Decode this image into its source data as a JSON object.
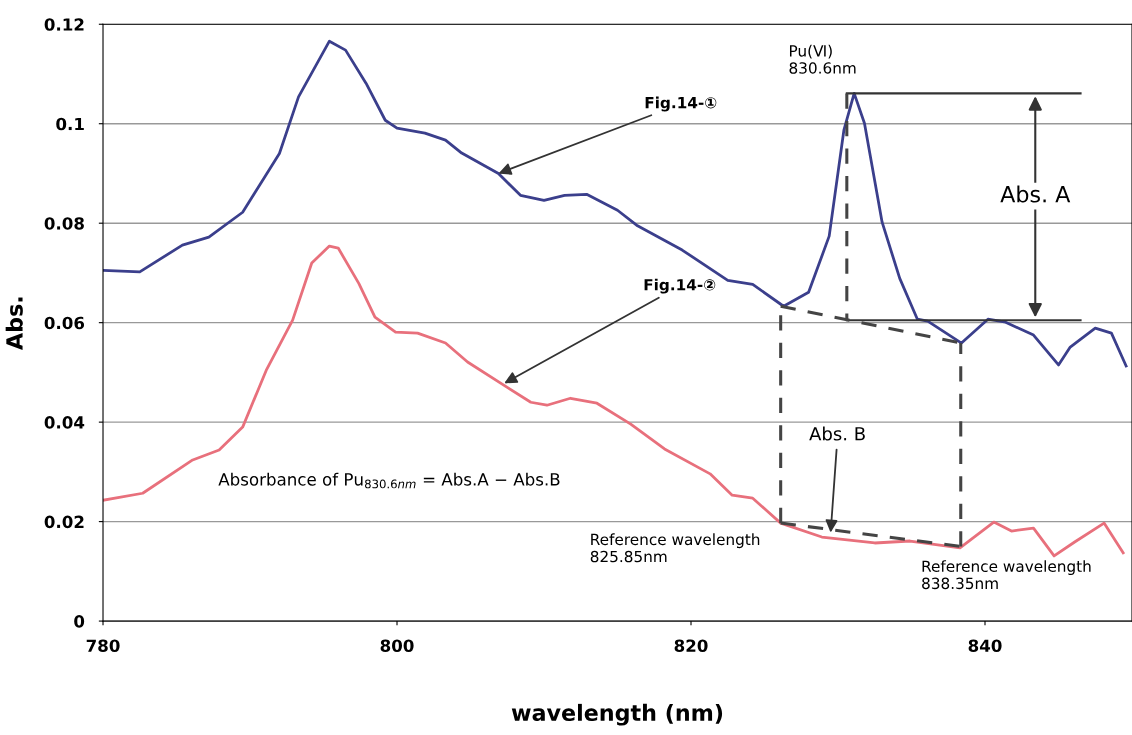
{
  "chart_data": {
    "type": "line",
    "xlabel": "wavelength (nm)",
    "ylabel": "Abs.",
    "xlim": [
      780,
      850
    ],
    "xticks": [
      780,
      800,
      820,
      840
    ],
    "ylim": [
      0,
      0.12
    ],
    "yticks": [
      0,
      0.02,
      0.04,
      0.06,
      0.08,
      0.1,
      0.12
    ],
    "grid": "y",
    "legend": false,
    "marker": "none",
    "series": [
      {
        "color": "#3b3f8c",
        "line_style": "solid",
        "x": [
          780,
          782.5,
          785.4,
          787.2,
          789.5,
          792,
          793.3,
          795.4,
          796.5,
          797.9,
          799.2,
          800,
          801.9,
          803.3,
          804.4,
          806.9,
          808.4,
          810,
          811.4,
          812.9,
          815,
          816.3,
          819.4,
          822.5,
          824.2,
          826.3,
          828,
          829.4,
          830.4,
          831.1,
          831.8,
          833,
          834.2,
          835.4,
          836.1,
          838.4,
          840.2,
          841.4,
          843.3,
          845,
          845.8,
          847.5,
          848.6,
          849.6
        ],
        "values": [
          0.0705,
          0.0702,
          0.0756,
          0.0772,
          0.0822,
          0.094,
          0.1054,
          0.1166,
          0.1148,
          0.1081,
          0.1007,
          0.0991,
          0.0981,
          0.0967,
          0.0941,
          0.09,
          0.0856,
          0.0846,
          0.0856,
          0.0858,
          0.0826,
          0.0796,
          0.0746,
          0.0685,
          0.0677,
          0.0633,
          0.0661,
          0.0774,
          0.0987,
          0.1061,
          0.1001,
          0.0802,
          0.0689,
          0.0607,
          0.0603,
          0.0559,
          0.0607,
          0.0601,
          0.0575,
          0.0515,
          0.0551,
          0.0589,
          0.0579,
          0.0513
        ]
      },
      {
        "color": "#e8707c",
        "line_style": "solid",
        "x": [
          780,
          782.7,
          786.1,
          787.9,
          789.5,
          791.1,
          792.9,
          794.2,
          795.4,
          796,
          797.4,
          798.5,
          799.9,
          801.4,
          803.3,
          804.8,
          807.5,
          809.1,
          810.2,
          811.8,
          813.6,
          815.9,
          818.2,
          821.3,
          822.8,
          824.2,
          826.1,
          828.9,
          832.5,
          834.9,
          838.3,
          840.6,
          841.8,
          843.3,
          844.7,
          846.1,
          848.1,
          849.4
        ],
        "values": [
          0.0243,
          0.0257,
          0.0324,
          0.0344,
          0.039,
          0.0504,
          0.0605,
          0.072,
          0.0754,
          0.075,
          0.0679,
          0.0611,
          0.0581,
          0.0579,
          0.0559,
          0.0521,
          0.047,
          0.044,
          0.0434,
          0.0448,
          0.0438,
          0.0396,
          0.0346,
          0.0296,
          0.0253,
          0.0247,
          0.0197,
          0.0169,
          0.0157,
          0.0161,
          0.0147,
          0.0199,
          0.0181,
          0.0187,
          0.0131,
          0.0159,
          0.0197,
          0.0137
        ]
      },
      {
        "color": "#333333",
        "line_style": "solid",
        "x": [
          830.6,
          846.5
        ],
        "values": [
          0.1061,
          0.1061
        ]
      },
      {
        "color": "#333333",
        "line_style": "solid",
        "x": [
          830.6,
          846.5
        ],
        "values": [
          0.0605,
          0.0605
        ]
      },
      {
        "color": "#444444",
        "line_style": "dashed",
        "x": [
          830.6,
          830.6
        ],
        "values": [
          0.1061,
          0.0605
        ]
      },
      {
        "color": "#444444",
        "line_style": "dashed",
        "x": [
          826.1,
          838.35
        ],
        "values": [
          0.0633,
          0.0559
        ]
      },
      {
        "color": "#444444",
        "line_style": "dashed",
        "x": [
          826.1,
          838.35
        ],
        "values": [
          0.0197,
          0.015
        ]
      },
      {
        "color": "#444444",
        "line_style": "dashed",
        "x": [
          826.1,
          826.1
        ],
        "values": [
          0.0197,
          0.0633
        ]
      },
      {
        "color": "#444444",
        "line_style": "dashed",
        "x": [
          838.35,
          838.35
        ],
        "values": [
          0.015,
          0.0559
        ]
      }
    ],
    "annotations": [
      {
        "text": "Fig.14-①",
        "x": 806.9,
        "y": 0.09
      },
      {
        "text": "Fig.14-②",
        "x": 807.3,
        "y": 0.0478
      },
      {
        "text": "Pu(Ⅵ)\n830.6nm",
        "x": 830.6,
        "y": 0.1061
      },
      "Abs. A",
      {
        "text": "Abs. B",
        "x": 829.5,
        "y": 0.0178
      },
      "Absorbance of Pu$_{830.6nm}$ = Abs.A − Abs.B",
      "Reference wavelength\n825.85nm",
      "Reference wavelength\n838.35nm"
    ]
  }
}
